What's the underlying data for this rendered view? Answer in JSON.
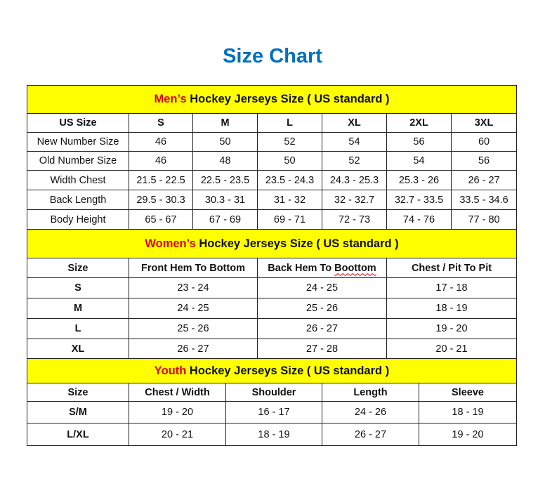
{
  "title": "Size Chart",
  "colors": {
    "title": "#0070C0",
    "section_bg": "#FFFF00",
    "accent": "#E00000"
  },
  "sections": [
    {
      "accent": "Men’s",
      "title": " Hockey Jerseys Size ( US standard )",
      "headers": [
        "US Size",
        "S",
        "M",
        "L",
        "XL",
        "2XL",
        "3XL"
      ],
      "rows": [
        [
          "New Number Size",
          "46",
          "50",
          "52",
          "54",
          "56",
          "60"
        ],
        [
          "Old Number Size",
          "46",
          "48",
          "50",
          "52",
          "54",
          "56"
        ],
        [
          "Width Chest",
          "21.5 - 22.5",
          "22.5 - 23.5",
          "23.5 - 24.3",
          "24.3 - 25.3",
          "25.3 - 26",
          "26 - 27"
        ],
        [
          "Back Length",
          "29.5 - 30.3",
          "30.3 - 31",
          "31 - 32",
          "32 - 32.7",
          "32.7 - 33.5",
          "33.5 - 34.6"
        ],
        [
          "Body Height",
          "65 - 67",
          "67 - 69",
          "69 - 71",
          "72 - 73",
          "74 - 76",
          "77 - 80"
        ]
      ]
    },
    {
      "accent": "Women’s",
      "title": " Hockey Jerseys Size ( US standard )",
      "headers": [
        "Size",
        "Front Hem To Bottom",
        "Back Hem To Boottom",
        "Chest / Pit To Pit"
      ],
      "rows": [
        [
          "S",
          "23 - 24",
          "24 - 25",
          "17 - 18"
        ],
        [
          "M",
          "24 - 25",
          "25 - 26",
          "18 - 19"
        ],
        [
          "L",
          "25 - 26",
          "26 - 27",
          "19 - 20"
        ],
        [
          "XL",
          "26 - 27",
          "27 - 28",
          "20 - 21"
        ]
      ]
    },
    {
      "accent": "Youth",
      "title": " Hockey Jerseys Size ( US standard )",
      "headers": [
        "Size",
        "Chest / Width",
        "Shoulder",
        "Length",
        "Sleeve"
      ],
      "rows": [
        [
          "S/M",
          "19 - 20",
          "16 - 17",
          "24 - 26",
          "18 - 19"
        ],
        [
          "L/XL",
          "20 - 21",
          "18 - 19",
          "26 - 27",
          "19 - 20"
        ]
      ]
    }
  ]
}
